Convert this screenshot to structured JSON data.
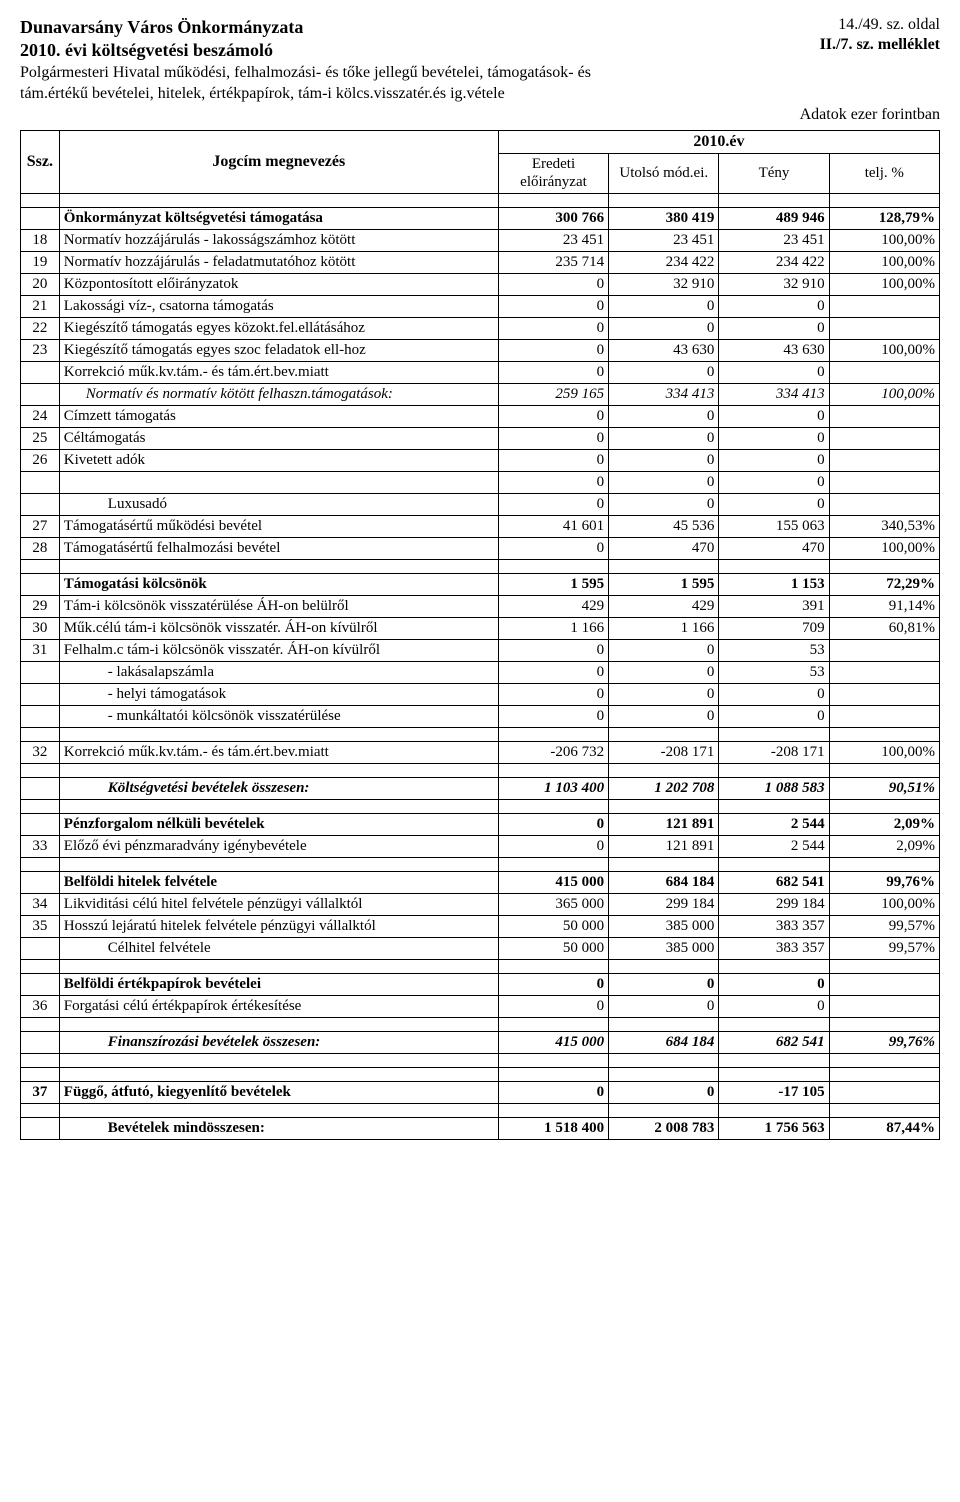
{
  "header": {
    "org": "Dunavarsány Város Önkormányzata",
    "year_line": "2010. évi költségvetési beszámoló",
    "desc": "Polgármesteri Hivatal működési, felhalmozási- és tőke jellegű bevételei, támogatások- és tám.értékű bevételei, hitelek, értékpapírok, tám-i kölcs.visszatér.és ig.vétele",
    "page_ref": "14./49. sz. oldal",
    "annex_ref": "II./7. sz. melléklet",
    "units": "Adatok ezer forintban"
  },
  "table_head": {
    "ssz": "Ssz.",
    "name": "Jogcím megnevezés",
    "year": "2010.év",
    "c1": "Eredeti előirányzat",
    "c2": "Utolsó mód.ei.",
    "c3": "Tény",
    "c4": "telj. %"
  },
  "rows": [
    {
      "type": "gap"
    },
    {
      "ssz": "",
      "name": "Önkormányzat költségvetési támogatása",
      "c1": "300 766",
      "c2": "380 419",
      "c3": "489 946",
      "c4": "128,79%",
      "style": "bold"
    },
    {
      "ssz": "18",
      "name": "Normatív hozzájárulás - lakosságszámhoz kötött",
      "c1": "23 451",
      "c2": "23 451",
      "c3": "23 451",
      "c4": "100,00%"
    },
    {
      "ssz": "19",
      "name": "Normatív hozzájárulás - feladatmutatóhoz kötött",
      "c1": "235 714",
      "c2": "234 422",
      "c3": "234 422",
      "c4": "100,00%"
    },
    {
      "ssz": "20",
      "name": "Központosított előirányzatok",
      "c1": "0",
      "c2": "32 910",
      "c3": "32 910",
      "c4": "100,00%"
    },
    {
      "ssz": "21",
      "name": "Lakossági víz-, csatorna támogatás",
      "c1": "0",
      "c2": "0",
      "c3": "0",
      "c4": ""
    },
    {
      "ssz": "22",
      "name": "Kiegészítő támogatás egyes közokt.fel.ellátásához",
      "c1": "0",
      "c2": "0",
      "c3": "0",
      "c4": ""
    },
    {
      "ssz": "23",
      "name": "Kiegészítő támogatás egyes szoc feladatok ell-hoz",
      "c1": "0",
      "c2": "43 630",
      "c3": "43 630",
      "c4": "100,00%"
    },
    {
      "ssz": "",
      "name": "Korrekció műk.kv.tám.- és tám.ért.bev.miatt",
      "c1": "0",
      "c2": "0",
      "c3": "0",
      "c4": ""
    },
    {
      "ssz": "",
      "name": "Normatív és normatív kötött felhaszn.támogatások:",
      "c1": "259 165",
      "c2": "334 413",
      "c3": "334 413",
      "c4": "100,00%",
      "style": "italic",
      "indent": 1
    },
    {
      "ssz": "24",
      "name": "Címzett támogatás",
      "c1": "0",
      "c2": "0",
      "c3": "0",
      "c4": ""
    },
    {
      "ssz": "25",
      "name": "Céltámogatás",
      "c1": "0",
      "c2": "0",
      "c3": "0",
      "c4": ""
    },
    {
      "ssz": "26",
      "name": "Kivetett adók",
      "c1": "0",
      "c2": "0",
      "c3": "0",
      "c4": ""
    },
    {
      "ssz": "",
      "name": "",
      "c1": "0",
      "c2": "0",
      "c3": "0",
      "c4": ""
    },
    {
      "ssz": "",
      "name": "Luxusadó",
      "c1": "0",
      "c2": "0",
      "c3": "0",
      "c4": "",
      "indent": 2
    },
    {
      "ssz": "27",
      "name": "Támogatásértű működési bevétel",
      "c1": "41 601",
      "c2": "45 536",
      "c3": "155 063",
      "c4": "340,53%"
    },
    {
      "ssz": "28",
      "name": "Támogatásértű felhalmozási bevétel",
      "c1": "0",
      "c2": "470",
      "c3": "470",
      "c4": "100,00%"
    },
    {
      "type": "gap"
    },
    {
      "ssz": "",
      "name": "Támogatási kölcsönök",
      "c1": "1 595",
      "c2": "1 595",
      "c3": "1 153",
      "c4": "72,29%",
      "style": "bold"
    },
    {
      "ssz": "29",
      "name": "Tám-i kölcsönök visszatérülése ÁH-on belülről",
      "c1": "429",
      "c2": "429",
      "c3": "391",
      "c4": "91,14%"
    },
    {
      "ssz": "30",
      "name": "Műk.célú tám-i kölcsönök visszatér. ÁH-on kívülről",
      "c1": "1 166",
      "c2": "1 166",
      "c3": "709",
      "c4": "60,81%"
    },
    {
      "ssz": "31",
      "name": "Felhalm.c tám-i kölcsönök visszatér. ÁH-on kívülről",
      "c1": "0",
      "c2": "0",
      "c3": "53",
      "c4": ""
    },
    {
      "ssz": "",
      "name": "- lakásalapszámla",
      "c1": "0",
      "c2": "0",
      "c3": "53",
      "c4": "",
      "indent": 2
    },
    {
      "ssz": "",
      "name": "- helyi támogatások",
      "c1": "0",
      "c2": "0",
      "c3": "0",
      "c4": "",
      "indent": 2
    },
    {
      "ssz": "",
      "name": "- munkáltatói kölcsönök visszatérülése",
      "c1": "0",
      "c2": "0",
      "c3": "0",
      "c4": "",
      "indent": 2
    },
    {
      "type": "gap"
    },
    {
      "ssz": "32",
      "name": "Korrekció műk.kv.tám.- és tám.ért.bev.miatt",
      "c1": "-206 732",
      "c2": "-208 171",
      "c3": "-208 171",
      "c4": "100,00%"
    },
    {
      "type": "gap"
    },
    {
      "ssz": "",
      "name": "Költségvetési bevételek összesen:",
      "c1": "1 103 400",
      "c2": "1 202 708",
      "c3": "1 088 583",
      "c4": "90,51%",
      "style": "bolditalic",
      "indent": 2
    },
    {
      "type": "gap"
    },
    {
      "ssz": "",
      "name": "Pénzforgalom nélküli bevételek",
      "c1": "0",
      "c2": "121 891",
      "c3": "2 544",
      "c4": "2,09%",
      "style": "bold"
    },
    {
      "ssz": "33",
      "name": "Előző évi pénzmaradvány igénybevétele",
      "c1": "0",
      "c2": "121 891",
      "c3": "2 544",
      "c4": "2,09%"
    },
    {
      "type": "gap"
    },
    {
      "ssz": "",
      "name": "Belföldi hitelek felvétele",
      "c1": "415 000",
      "c2": "684 184",
      "c3": "682 541",
      "c4": "99,76%",
      "style": "bold"
    },
    {
      "ssz": "34",
      "name": "Likviditási célú hitel felvétele pénzügyi vállalktól",
      "c1": "365 000",
      "c2": "299 184",
      "c3": "299 184",
      "c4": "100,00%"
    },
    {
      "ssz": "35",
      "name": "Hosszú lejáratú hitelek felvétele pénzügyi vállalktól",
      "c1": "50 000",
      "c2": "385 000",
      "c3": "383 357",
      "c4": "99,57%"
    },
    {
      "ssz": "",
      "name": "Célhitel felvétele",
      "c1": "50 000",
      "c2": "385 000",
      "c3": "383 357",
      "c4": "99,57%",
      "indent": 2
    },
    {
      "type": "gap"
    },
    {
      "ssz": "",
      "name": "Belföldi értékpapírok bevételei",
      "c1": "0",
      "c2": "0",
      "c3": "0",
      "c4": "",
      "style": "bold"
    },
    {
      "ssz": "36",
      "name": "Forgatási célú értékpapírok értékesítése",
      "c1": "0",
      "c2": "0",
      "c3": "0",
      "c4": ""
    },
    {
      "type": "gap"
    },
    {
      "ssz": "",
      "name": "Finanszírozási bevételek összesen:",
      "c1": "415 000",
      "c2": "684 184",
      "c3": "682 541",
      "c4": "99,76%",
      "style": "bolditalic",
      "indent": 2
    },
    {
      "type": "gap"
    },
    {
      "type": "gap"
    },
    {
      "ssz": "37",
      "name": "Függő, átfutó, kiegyenlítő bevételek",
      "c1": "0",
      "c2": "0",
      "c3": "-17 105",
      "c4": "",
      "style": "bold"
    },
    {
      "type": "gap"
    },
    {
      "ssz": "",
      "name": "Bevételek mindösszesen:",
      "c1": "1 518 400",
      "c2": "2 008 783",
      "c3": "1 756 563",
      "c4": "87,44%",
      "style": "bold",
      "indent": 2
    }
  ]
}
